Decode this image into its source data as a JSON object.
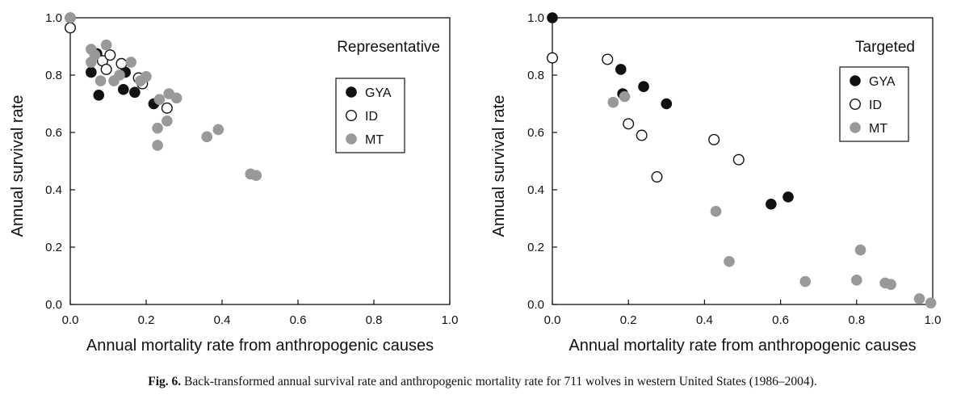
{
  "caption": {
    "label": "Fig. 6.",
    "text": "Back-transformed annual survival rate and anthropogenic mortality rate for 711 wolves in western United States (1986–2004)."
  },
  "colors": {
    "GYA": "#111111",
    "ID": "#ffffff",
    "MT": "#999999",
    "outline": "#111111"
  },
  "chart_data": [
    {
      "type": "scatter",
      "title": "Representative",
      "xlabel": "Annual mortality rate from anthropogenic causes",
      "ylabel": "Annual survival rate",
      "xlim": [
        0,
        1
      ],
      "ylim": [
        0,
        1
      ],
      "xticks": [
        "0.0",
        "0.2",
        "0.4",
        "0.6",
        "0.8",
        "1.0"
      ],
      "yticks": [
        "0.0",
        "0.2",
        "0.4",
        "0.6",
        "0.8",
        "1.0"
      ],
      "legend": [
        "GYA",
        "ID",
        "MT"
      ],
      "legend_position": "center-right",
      "grid": false,
      "series": [
        {
          "name": "GYA",
          "style": "filled-black",
          "points": [
            [
              0.0,
              1.0
            ],
            [
              0.055,
              0.81
            ],
            [
              0.07,
              0.875
            ],
            [
              0.075,
              0.73
            ],
            [
              0.14,
              0.75
            ],
            [
              0.145,
              0.81
            ],
            [
              0.17,
              0.74
            ],
            [
              0.22,
              0.7
            ]
          ]
        },
        {
          "name": "ID",
          "style": "open",
          "points": [
            [
              0.0,
              0.965
            ],
            [
              0.085,
              0.85
            ],
            [
              0.095,
              0.82
            ],
            [
              0.105,
              0.87
            ],
            [
              0.135,
              0.84
            ],
            [
              0.18,
              0.79
            ],
            [
              0.19,
              0.77
            ],
            [
              0.255,
              0.685
            ]
          ]
        },
        {
          "name": "MT",
          "style": "filled-gray",
          "points": [
            [
              0.0,
              1.0
            ],
            [
              0.055,
              0.89
            ],
            [
              0.055,
              0.845
            ],
            [
              0.065,
              0.87
            ],
            [
              0.08,
              0.78
            ],
            [
              0.095,
              0.905
            ],
            [
              0.115,
              0.78
            ],
            [
              0.13,
              0.8
            ],
            [
              0.16,
              0.845
            ],
            [
              0.185,
              0.78
            ],
            [
              0.2,
              0.795
            ],
            [
              0.23,
              0.615
            ],
            [
              0.23,
              0.555
            ],
            [
              0.235,
              0.715
            ],
            [
              0.255,
              0.64
            ],
            [
              0.26,
              0.735
            ],
            [
              0.28,
              0.72
            ],
            [
              0.36,
              0.585
            ],
            [
              0.39,
              0.61
            ],
            [
              0.475,
              0.455
            ],
            [
              0.49,
              0.45
            ]
          ]
        }
      ]
    },
    {
      "type": "scatter",
      "title": "Targeted",
      "xlabel": "Annual mortality rate from anthropogenic causes",
      "ylabel": "Annual survival rate",
      "xlim": [
        0,
        1
      ],
      "ylim": [
        0,
        1
      ],
      "xticks": [
        "0.0",
        "0.2",
        "0.4",
        "0.6",
        "0.8",
        "1.0"
      ],
      "yticks": [
        "0.0",
        "0.2",
        "0.4",
        "0.6",
        "0.8",
        "1.0"
      ],
      "legend": [
        "GYA",
        "ID",
        "MT"
      ],
      "legend_position": "top-right",
      "grid": false,
      "series": [
        {
          "name": "GYA",
          "style": "filled-black",
          "points": [
            [
              0.0,
              1.0
            ],
            [
              0.18,
              0.82
            ],
            [
              0.185,
              0.735
            ],
            [
              0.24,
              0.76
            ],
            [
              0.3,
              0.7
            ],
            [
              0.575,
              0.35
            ],
            [
              0.62,
              0.375
            ]
          ]
        },
        {
          "name": "ID",
          "style": "open",
          "points": [
            [
              0.0,
              0.86
            ],
            [
              0.145,
              0.855
            ],
            [
              0.2,
              0.63
            ],
            [
              0.235,
              0.59
            ],
            [
              0.275,
              0.445
            ],
            [
              0.425,
              0.575
            ],
            [
              0.49,
              0.505
            ]
          ]
        },
        {
          "name": "MT",
          "style": "filled-gray",
          "points": [
            [
              0.16,
              0.705
            ],
            [
              0.19,
              0.725
            ],
            [
              0.43,
              0.325
            ],
            [
              0.465,
              0.15
            ],
            [
              0.665,
              0.08
            ],
            [
              0.8,
              0.085
            ],
            [
              0.81,
              0.19
            ],
            [
              0.875,
              0.075
            ],
            [
              0.89,
              0.07
            ],
            [
              0.965,
              0.02
            ],
            [
              0.995,
              0.005
            ]
          ]
        }
      ]
    }
  ]
}
